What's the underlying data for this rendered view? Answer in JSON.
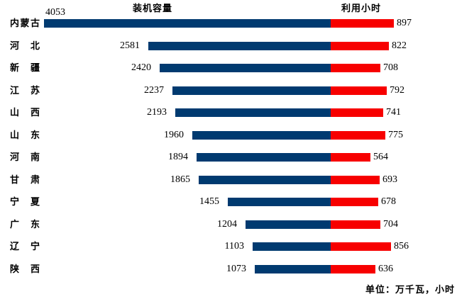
{
  "header": {
    "left_series_title": "装机容量",
    "right_series_title": "利用小时"
  },
  "footer": {
    "unit_note": "单位：万千瓦，小时"
  },
  "colors": {
    "capacity_bar": "#003a70",
    "hours_bar": "#f70000",
    "text": "#000000",
    "background": "#ffffff"
  },
  "chart_data": {
    "type": "bar",
    "orientation": "horizontal-diverging",
    "title": "",
    "categories": [
      "内蒙古",
      "河北",
      "新疆",
      "江苏",
      "山西",
      "山东",
      "河南",
      "甘肃",
      "宁夏",
      "广东",
      "辽宁",
      "陕西"
    ],
    "series": [
      {
        "name": "装机容量",
        "side": "left",
        "color": "#003a70",
        "values": [
          4053,
          2581,
          2420,
          2237,
          2193,
          1960,
          1894,
          1865,
          1455,
          1204,
          1103,
          1073
        ]
      },
      {
        "name": "利用小时",
        "side": "right",
        "color": "#f70000",
        "values": [
          897,
          822,
          708,
          792,
          741,
          775,
          564,
          693,
          678,
          704,
          856,
          636
        ]
      }
    ],
    "unit_note": "单位：万千瓦，小时",
    "value_labels": "outside-end",
    "legend_position": "top",
    "grid": false,
    "axis_gap_x_ratio": 0.7236
  }
}
